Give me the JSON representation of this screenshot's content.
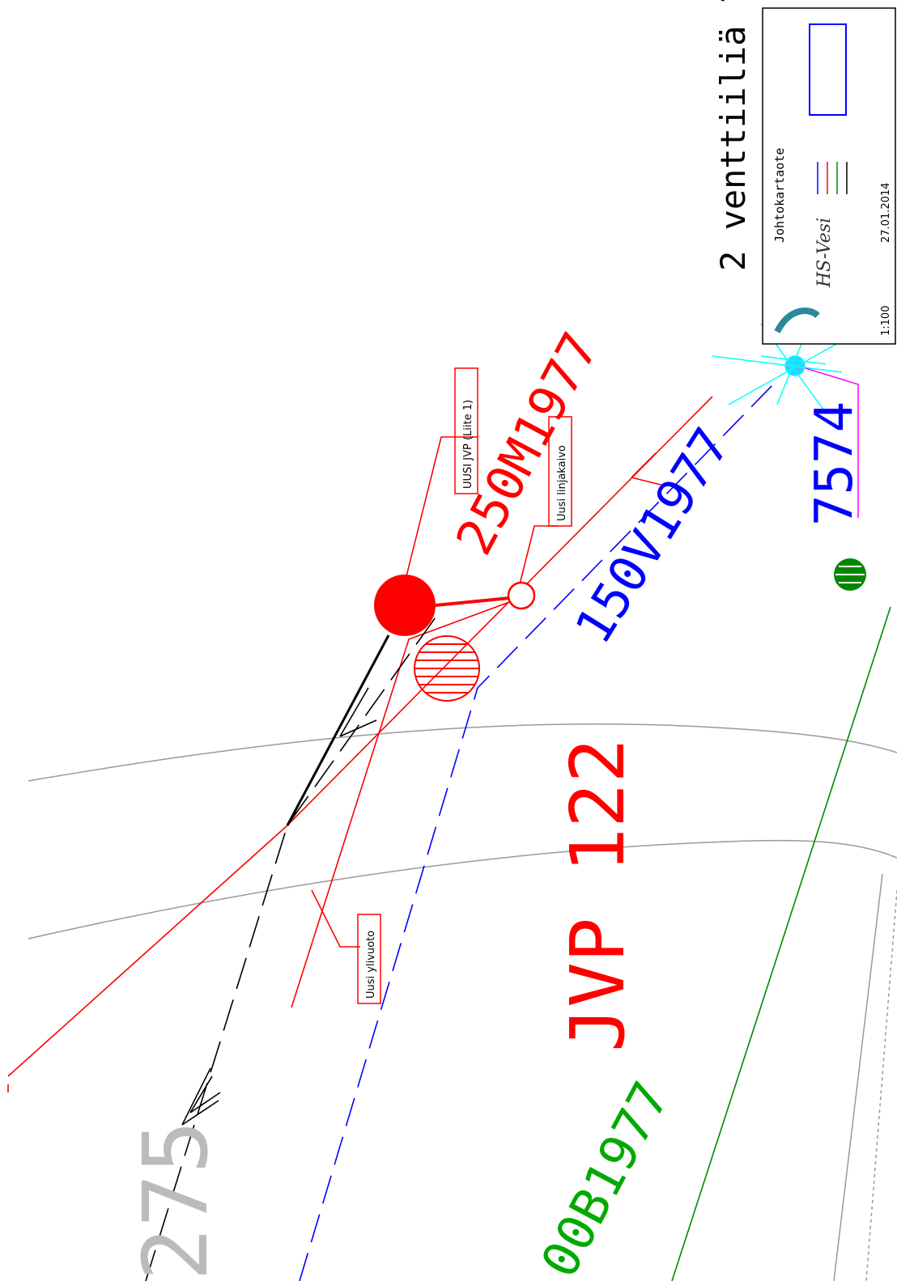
{
  "note": "2 venttiiliä ?",
  "title_block": {
    "title": "Johtokartaote",
    "logo": "HS-Vesi",
    "date": "27.01.2014",
    "scale": "1:100"
  },
  "callouts": {
    "new_jvp": "UUSI JVP (Liite 1)",
    "new_manhole": "Uusi linjakaivo",
    "new_overflow": "Uusi ylivuoto"
  },
  "pipe_labels": {
    "sewer": "250M1977",
    "water": "150V1977",
    "storm": "00B1977",
    "station": "JVP 122",
    "node": "7574",
    "plot": "275"
  }
}
